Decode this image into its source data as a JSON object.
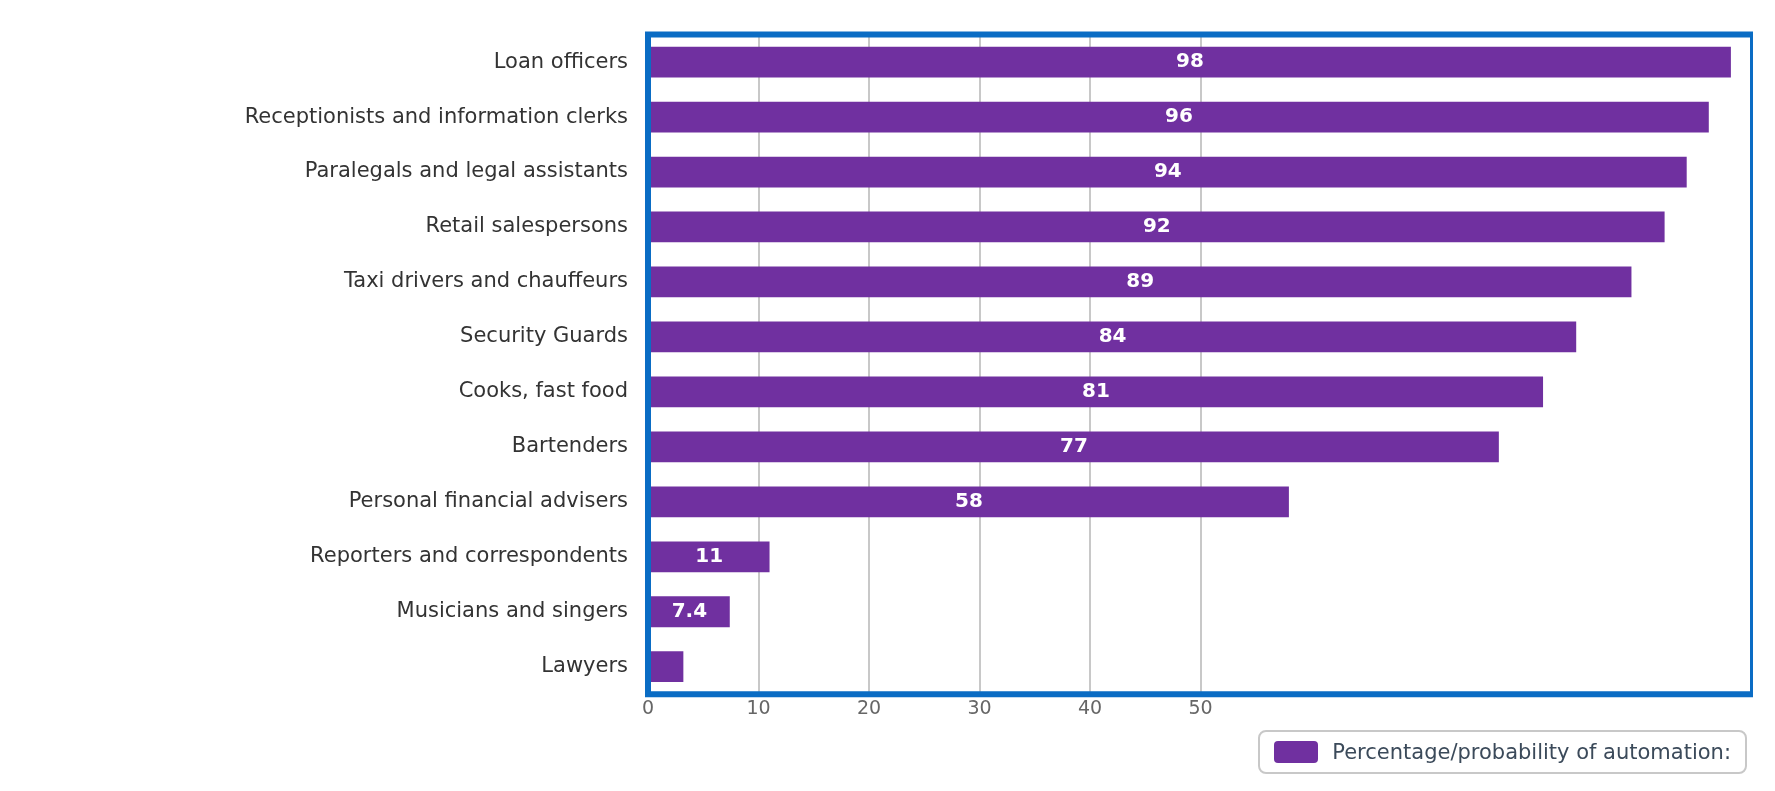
{
  "chart_data": {
    "type": "bar",
    "orientation": "horizontal",
    "categories": [
      "Loan officers",
      "Receptionists and information clerks",
      "Paralegals and legal assistants",
      "Retail salespersons",
      "Taxi drivers and chauffeurs",
      "Security Guards",
      "Cooks, fast food",
      "Bartenders",
      "Personal financial advisers",
      "Reporters and correspondents",
      "Musicians and singers",
      "Lawyers"
    ],
    "series": [
      {
        "name": "Percentage/probability of automation:",
        "color": "#7030a0",
        "values": [
          98,
          96,
          94,
          92,
          89,
          84,
          81,
          77,
          58,
          11,
          7.4,
          3.2
        ],
        "value_labels": [
          "98",
          "96",
          "94",
          "92",
          "89",
          "84",
          "81",
          "77",
          "58",
          "11",
          "7.4",
          null
        ]
      }
    ],
    "xlim": [
      0,
      100
    ],
    "xticks": [
      0,
      10,
      20,
      30,
      40,
      50
    ],
    "grid": "x",
    "legend": "bottom right"
  }
}
